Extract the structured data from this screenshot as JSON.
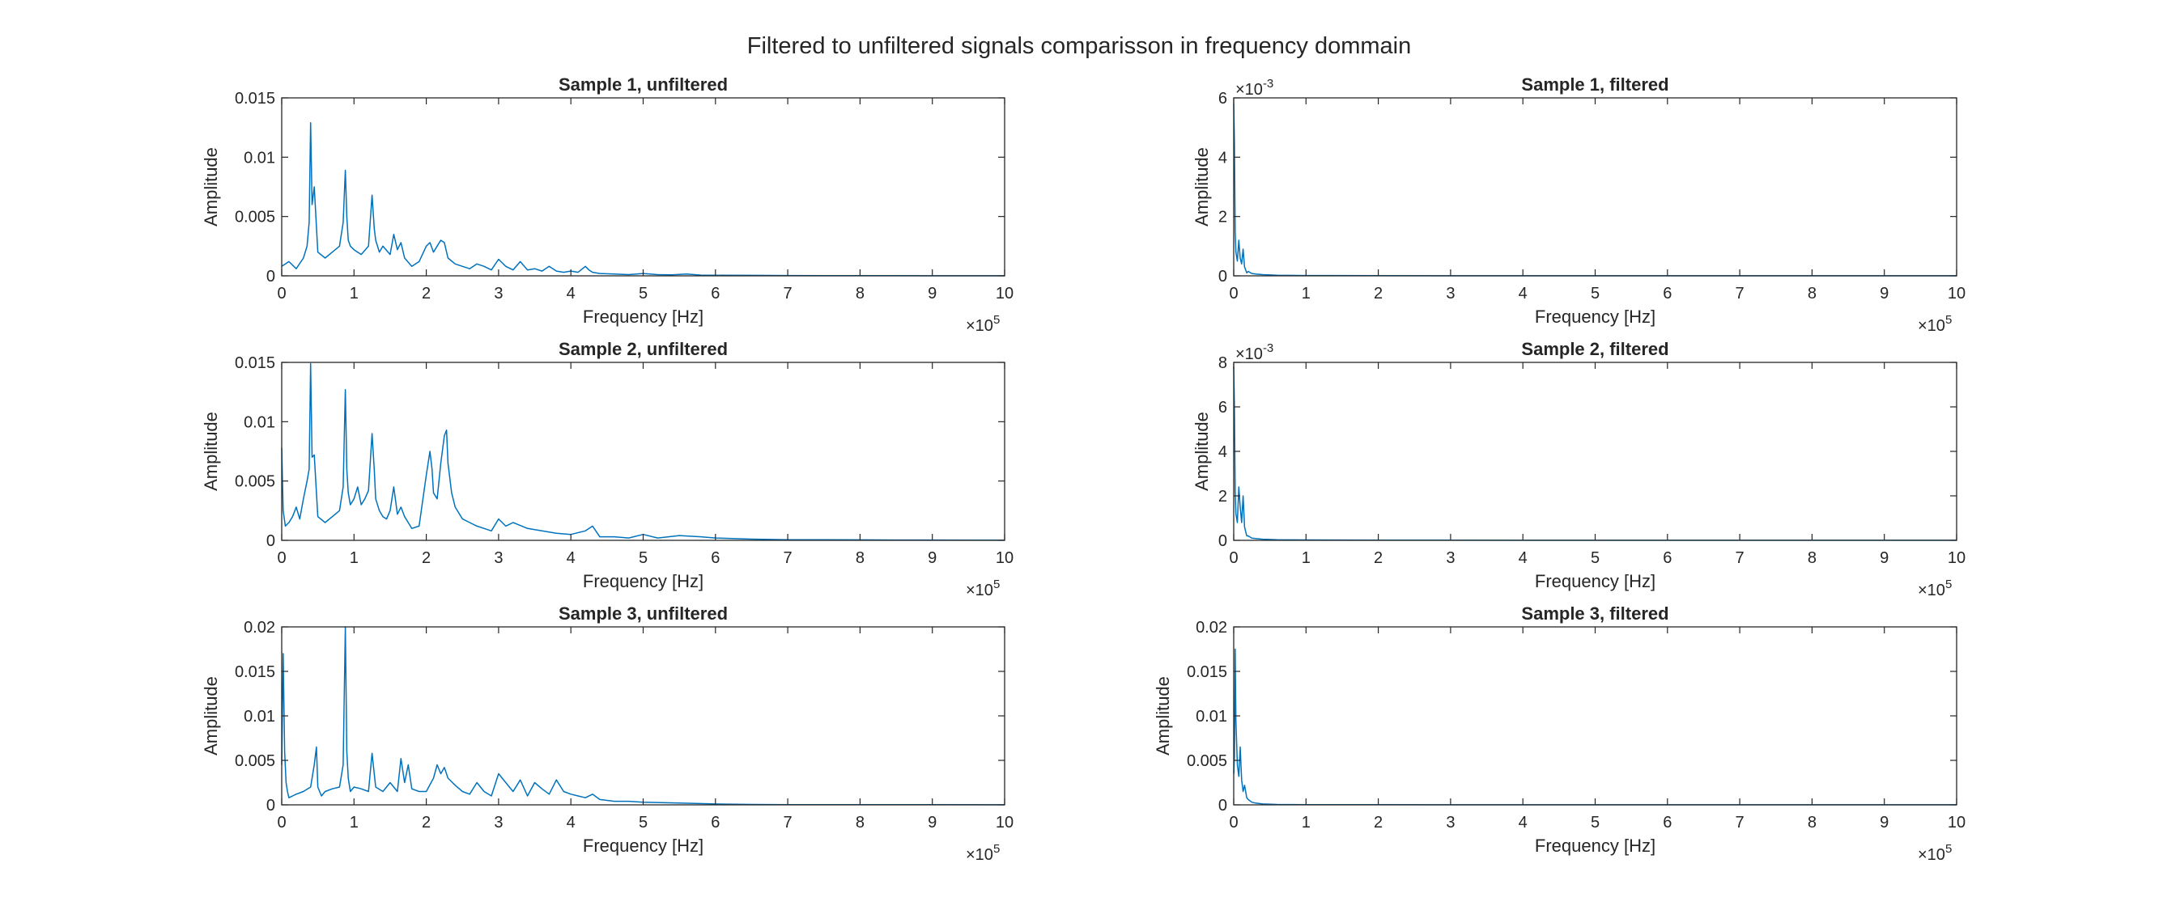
{
  "figure": {
    "title": "Filtered to unfiltered signals comparisson in frequency dommain",
    "line_color": "#0072BD",
    "axis_color": "#262626"
  },
  "chart_data": [
    {
      "type": "line",
      "title": "Sample 1, unfiltered",
      "xlabel": "Frequency [Hz]",
      "ylabel": "Amplitude",
      "xlim": [
        0,
        1000000
      ],
      "ylim": [
        0,
        0.015
      ],
      "x_ticks": [
        "0",
        "1",
        "2",
        "3",
        "4",
        "5",
        "6",
        "7",
        "8",
        "9",
        "10"
      ],
      "x_exponent": "5",
      "y_ticks": [
        "0",
        "0.005",
        "0.01",
        "0.015"
      ],
      "y_exponent": "",
      "grid": false,
      "series": [
        {
          "x": [
            0,
            10000,
            20000,
            30000,
            35000,
            38000,
            40000,
            42000,
            45000,
            50000,
            60000,
            70000,
            80000,
            85000,
            88000,
            90000,
            92000,
            95000,
            100000,
            110000,
            120000,
            125000,
            128000,
            130000,
            135000,
            140000,
            150000,
            155000,
            160000,
            165000,
            170000,
            180000,
            190000,
            200000,
            205000,
            210000,
            215000,
            220000,
            225000,
            230000,
            240000,
            250000,
            260000,
            270000,
            280000,
            290000,
            300000,
            310000,
            320000,
            330000,
            340000,
            350000,
            360000,
            370000,
            380000,
            390000,
            400000,
            410000,
            420000,
            425000,
            430000,
            440000,
            460000,
            480000,
            500000,
            520000,
            540000,
            560000,
            580000,
            600000,
            650000,
            700000,
            750000,
            800000,
            850000,
            900000,
            950000,
            1000000
          ],
          "values": [
            0.0008,
            0.0012,
            0.0006,
            0.0015,
            0.0025,
            0.0045,
            0.0129,
            0.006,
            0.0075,
            0.002,
            0.0015,
            0.002,
            0.0025,
            0.0045,
            0.0089,
            0.005,
            0.003,
            0.0025,
            0.0022,
            0.0018,
            0.0025,
            0.0068,
            0.004,
            0.003,
            0.002,
            0.0025,
            0.0018,
            0.0035,
            0.0022,
            0.0028,
            0.0015,
            0.0008,
            0.0012,
            0.0025,
            0.0028,
            0.002,
            0.0025,
            0.003,
            0.0028,
            0.0015,
            0.001,
            0.0008,
            0.0006,
            0.001,
            0.0008,
            0.0005,
            0.0014,
            0.0008,
            0.0005,
            0.0012,
            0.0005,
            0.0006,
            0.0004,
            0.0008,
            0.0004,
            0.0003,
            0.0004,
            0.0003,
            0.0008,
            0.0005,
            0.0003,
            0.0002,
            0.00015,
            0.0001,
            0.0002,
            0.0001,
            8e-05,
            0.00015,
            6e-05,
            5e-05,
            4e-05,
            3e-05,
            2e-05,
            2e-05,
            2e-05,
            1e-05,
            1e-05,
            1e-05
          ]
        }
      ]
    },
    {
      "type": "line",
      "title": "Sample 1, filtered",
      "xlabel": "Frequency [Hz]",
      "ylabel": "Amplitude",
      "xlim": [
        0,
        1000000
      ],
      "ylim": [
        0,
        0.006
      ],
      "x_ticks": [
        "0",
        "1",
        "2",
        "3",
        "4",
        "5",
        "6",
        "7",
        "8",
        "9",
        "10"
      ],
      "x_exponent": "5",
      "y_ticks": [
        "0",
        "2",
        "4",
        "6"
      ],
      "y_exponent": "-3",
      "grid": false,
      "series": [
        {
          "x": [
            0,
            1000,
            2000,
            3000,
            5000,
            7000,
            9000,
            11000,
            13000,
            15000,
            18000,
            20000,
            25000,
            30000,
            40000,
            60000,
            100000,
            200000,
            400000,
            600000,
            800000,
            1000000
          ],
          "values": [
            0.0058,
            0.0045,
            0.0015,
            0.0008,
            0.0005,
            0.0012,
            0.0006,
            0.0004,
            0.0009,
            0.0003,
            0.0001,
            0.00015,
            8e-05,
            6e-05,
            4e-05,
            2e-05,
            1e-05,
            5e-06,
            3e-06,
            2e-06,
            2e-06,
            2e-06
          ]
        }
      ]
    },
    {
      "type": "line",
      "title": "Sample 2, unfiltered",
      "xlabel": "Frequency [Hz]",
      "ylabel": "Amplitude",
      "xlim": [
        0,
        1000000
      ],
      "ylim": [
        0,
        0.015
      ],
      "x_ticks": [
        "0",
        "1",
        "2",
        "3",
        "4",
        "5",
        "6",
        "7",
        "8",
        "9",
        "10"
      ],
      "x_exponent": "5",
      "y_ticks": [
        "0",
        "0.005",
        "0.01",
        "0.015"
      ],
      "y_exponent": "",
      "grid": false,
      "series": [
        {
          "x": [
            0,
            2000,
            5000,
            10000,
            15000,
            20000,
            25000,
            30000,
            35000,
            38000,
            40000,
            42000,
            45000,
            50000,
            60000,
            70000,
            80000,
            85000,
            88000,
            90000,
            92000,
            95000,
            100000,
            105000,
            110000,
            115000,
            120000,
            125000,
            128000,
            130000,
            135000,
            140000,
            145000,
            150000,
            155000,
            160000,
            165000,
            170000,
            175000,
            180000,
            190000,
            200000,
            205000,
            208000,
            210000,
            215000,
            220000,
            225000,
            228000,
            230000,
            235000,
            240000,
            250000,
            260000,
            270000,
            280000,
            290000,
            300000,
            310000,
            320000,
            340000,
            360000,
            380000,
            400000,
            420000,
            430000,
            440000,
            460000,
            480000,
            500000,
            520000,
            550000,
            580000,
            600000,
            650000,
            700000,
            750000,
            800000,
            850000,
            900000,
            950000,
            1000000
          ],
          "values": [
            0.0078,
            0.0025,
            0.0012,
            0.0015,
            0.002,
            0.0028,
            0.0018,
            0.0035,
            0.005,
            0.006,
            0.0149,
            0.007,
            0.0072,
            0.002,
            0.0015,
            0.002,
            0.0025,
            0.0045,
            0.0127,
            0.006,
            0.004,
            0.003,
            0.0035,
            0.0045,
            0.003,
            0.0035,
            0.0042,
            0.009,
            0.006,
            0.0035,
            0.0025,
            0.002,
            0.0018,
            0.0025,
            0.0045,
            0.0022,
            0.0028,
            0.002,
            0.0015,
            0.001,
            0.0012,
            0.0055,
            0.0075,
            0.006,
            0.004,
            0.0035,
            0.0065,
            0.0088,
            0.0093,
            0.0065,
            0.004,
            0.0028,
            0.0018,
            0.0015,
            0.0012,
            0.001,
            0.0008,
            0.0018,
            0.0012,
            0.0015,
            0.001,
            0.0008,
            0.0006,
            0.0005,
            0.0008,
            0.0012,
            0.0003,
            0.0003,
            0.0002,
            0.0005,
            0.0002,
            0.0004,
            0.0003,
            0.0002,
            0.0001,
            5e-05,
            5e-05,
            4e-05,
            3e-05,
            3e-05,
            2e-05,
            2e-05
          ]
        }
      ]
    },
    {
      "type": "line",
      "title": "Sample 2, filtered",
      "xlabel": "Frequency [Hz]",
      "ylabel": "Amplitude",
      "xlim": [
        0,
        1000000
      ],
      "ylim": [
        0,
        0.008
      ],
      "x_ticks": [
        "0",
        "1",
        "2",
        "3",
        "4",
        "5",
        "6",
        "7",
        "8",
        "9",
        "10"
      ],
      "x_exponent": "5",
      "y_ticks": [
        "0",
        "2",
        "4",
        "6",
        "8"
      ],
      "y_exponent": "-3",
      "grid": false,
      "series": [
        {
          "x": [
            0,
            1000,
            2000,
            3000,
            5000,
            7000,
            9000,
            11000,
            13000,
            15000,
            18000,
            20000,
            25000,
            30000,
            40000,
            60000,
            100000,
            200000,
            400000,
            600000,
            800000,
            1000000
          ],
          "values": [
            0.0078,
            0.006,
            0.0022,
            0.0012,
            0.0008,
            0.0024,
            0.0015,
            0.0008,
            0.002,
            0.0006,
            0.0002,
            0.0002,
            0.0001,
            8e-05,
            5e-05,
            3e-05,
            2e-05,
            1e-05,
            5e-06,
            4e-06,
            3e-06,
            3e-06
          ]
        }
      ]
    },
    {
      "type": "line",
      "title": "Sample 3, unfiltered",
      "xlabel": "Frequency [Hz]",
      "ylabel": "Amplitude",
      "xlim": [
        0,
        1000000
      ],
      "ylim": [
        0,
        0.02
      ],
      "x_ticks": [
        "0",
        "1",
        "2",
        "3",
        "4",
        "5",
        "6",
        "7",
        "8",
        "9",
        "10"
      ],
      "x_exponent": "5",
      "y_ticks": [
        "0",
        "0.005",
        "0.01",
        "0.015",
        "0.02"
      ],
      "y_exponent": "",
      "grid": false,
      "series": [
        {
          "x": [
            0,
            2000,
            4000,
            6000,
            8000,
            10000,
            15000,
            20000,
            30000,
            40000,
            45000,
            48000,
            50000,
            55000,
            60000,
            70000,
            80000,
            85000,
            88000,
            90000,
            92000,
            95000,
            100000,
            110000,
            120000,
            125000,
            128000,
            130000,
            140000,
            150000,
            160000,
            165000,
            170000,
            175000,
            180000,
            190000,
            200000,
            210000,
            215000,
            220000,
            225000,
            230000,
            240000,
            250000,
            260000,
            270000,
            280000,
            290000,
            300000,
            310000,
            320000,
            330000,
            340000,
            350000,
            360000,
            370000,
            380000,
            390000,
            400000,
            410000,
            420000,
            430000,
            440000,
            460000,
            480000,
            500000,
            550000,
            600000,
            650000,
            700000,
            800000,
            900000,
            1000000
          ],
          "values": [
            0.0045,
            0.017,
            0.006,
            0.0025,
            0.0015,
            0.0008,
            0.001,
            0.0012,
            0.0015,
            0.002,
            0.0045,
            0.0065,
            0.002,
            0.001,
            0.0015,
            0.0018,
            0.002,
            0.0045,
            0.02,
            0.006,
            0.003,
            0.0015,
            0.002,
            0.0018,
            0.0015,
            0.0058,
            0.0035,
            0.002,
            0.0015,
            0.0025,
            0.0015,
            0.0052,
            0.0025,
            0.0045,
            0.0018,
            0.0015,
            0.0015,
            0.003,
            0.0045,
            0.0035,
            0.0042,
            0.003,
            0.0022,
            0.0015,
            0.0012,
            0.0025,
            0.0015,
            0.001,
            0.0035,
            0.0025,
            0.0015,
            0.0028,
            0.001,
            0.0025,
            0.0018,
            0.0012,
            0.0028,
            0.0015,
            0.0012,
            0.001,
            0.0008,
            0.0012,
            0.0006,
            0.0004,
            0.0004,
            0.0003,
            0.0002,
            0.0001,
            5e-05,
            3e-05,
            2e-05,
            2e-05,
            1e-05
          ]
        }
      ]
    },
    {
      "type": "line",
      "title": "Sample 3, filtered",
      "xlabel": "Frequency [Hz]",
      "ylabel": "Amplitude",
      "xlim": [
        0,
        1000000
      ],
      "ylim": [
        0,
        0.02
      ],
      "x_ticks": [
        "0",
        "1",
        "2",
        "3",
        "4",
        "5",
        "6",
        "7",
        "8",
        "9",
        "10"
      ],
      "x_exponent": "5",
      "y_ticks": [
        "0",
        "0.005",
        "0.01",
        "0.015",
        "0.02"
      ],
      "y_exponent": "",
      "grid": false,
      "series": [
        {
          "x": [
            0,
            1000,
            2000,
            3000,
            5000,
            7000,
            9000,
            11000,
            13000,
            15000,
            18000,
            20000,
            25000,
            30000,
            40000,
            60000,
            100000,
            200000,
            400000,
            600000,
            800000,
            1000000
          ],
          "values": [
            0.0035,
            0.0055,
            0.0175,
            0.0095,
            0.0045,
            0.0032,
            0.0065,
            0.0028,
            0.0015,
            0.0022,
            0.0008,
            0.0006,
            0.0003,
            0.0002,
            0.0001,
            5e-05,
            3e-05,
            2e-05,
            1e-05,
            1e-05,
            1e-05,
            1e-05
          ]
        }
      ]
    }
  ]
}
